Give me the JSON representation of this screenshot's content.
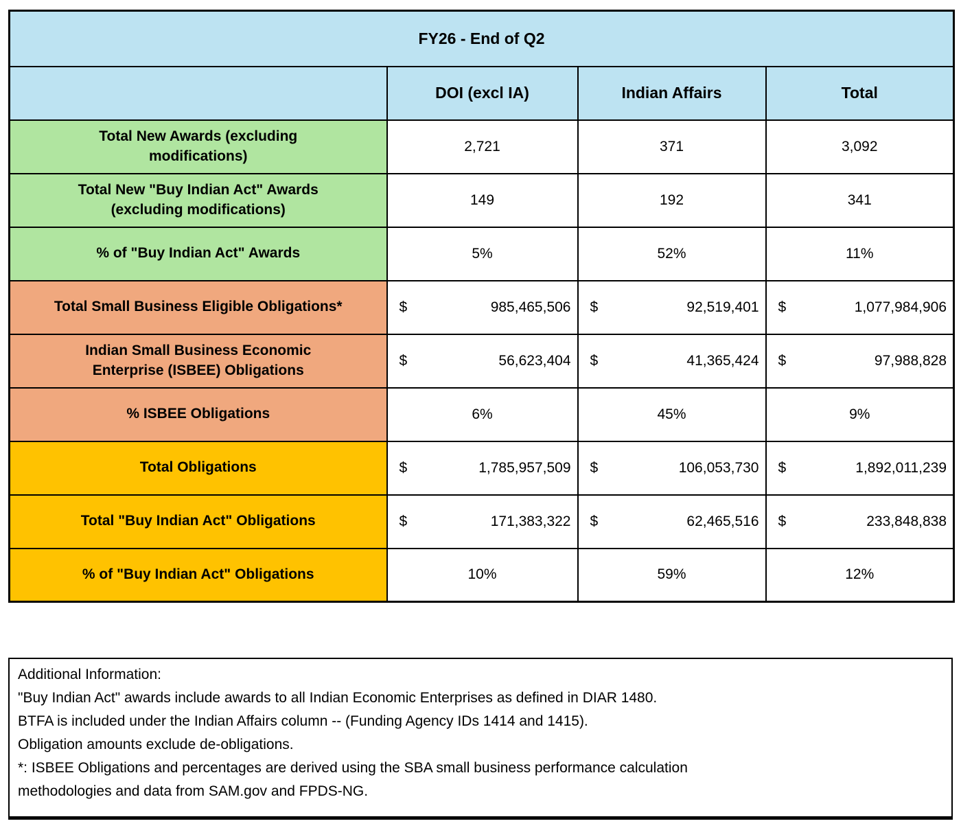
{
  "colors": {
    "header_blue": "#BDE3F2",
    "awards_green": "#B0E5A0",
    "small_business_orange": "#F0A87E",
    "obligations_yellow": "#FFC200",
    "border_black": "#000000",
    "cell_white": "#FFFFFF"
  },
  "table": {
    "title": "FY26 - End of Q2",
    "currency_symbol": "$",
    "columns": [
      "DOI (excl IA)",
      "Indian Affairs",
      "Total"
    ],
    "rows": [
      {
        "label": "Total New Awards (excluding modifications)",
        "group": "green",
        "type": "count",
        "values": [
          "2,721",
          "371",
          "3,092"
        ]
      },
      {
        "label": "Total New \"Buy Indian Act\" Awards (excluding modifications)",
        "group": "green",
        "type": "count",
        "values": [
          "149",
          "192",
          "341"
        ]
      },
      {
        "label": "% of \"Buy Indian Act\" Awards",
        "group": "green",
        "type": "percent",
        "values": [
          "5%",
          "52%",
          "11%"
        ]
      },
      {
        "label": "Total Small Business Eligible Obligations*",
        "group": "orange",
        "type": "currency",
        "values": [
          "985,465,506",
          "92,519,401",
          "1,077,984,906"
        ]
      },
      {
        "label": "Indian Small Business Economic Enterprise (ISBEE) Obligations",
        "group": "orange",
        "type": "currency",
        "values": [
          "56,623,404",
          "41,365,424",
          "97,988,828"
        ]
      },
      {
        "label": "% ISBEE Obligations",
        "group": "orange",
        "type": "percent",
        "values": [
          "6%",
          "45%",
          "9%"
        ]
      },
      {
        "label": "Total Obligations",
        "group": "yellow",
        "type": "currency",
        "values": [
          "1,785,957,509",
          "106,053,730",
          "1,892,011,239"
        ]
      },
      {
        "label": "Total \"Buy Indian Act\" Obligations",
        "group": "yellow",
        "type": "currency",
        "values": [
          "171,383,322",
          "62,465,516",
          "233,848,838"
        ]
      },
      {
        "label": "% of \"Buy Indian Act\" Obligations",
        "group": "yellow",
        "type": "percent",
        "values": [
          "10%",
          "59%",
          "12%"
        ]
      }
    ]
  },
  "notes": {
    "lines": [
      "Additional Information:",
      "\"Buy Indian Act\" awards include awards to all Indian Economic Enterprises as defined in DIAR 1480.",
      "BTFA is included under the Indian Affairs column -- (Funding Agency IDs 1414 and 1415).",
      "Obligation amounts exclude de-obligations.",
      "*: ISBEE Obligations and percentages are derived using the SBA small business performance calculation",
      "methodologies and data from SAM.gov and FPDS-NG."
    ]
  }
}
